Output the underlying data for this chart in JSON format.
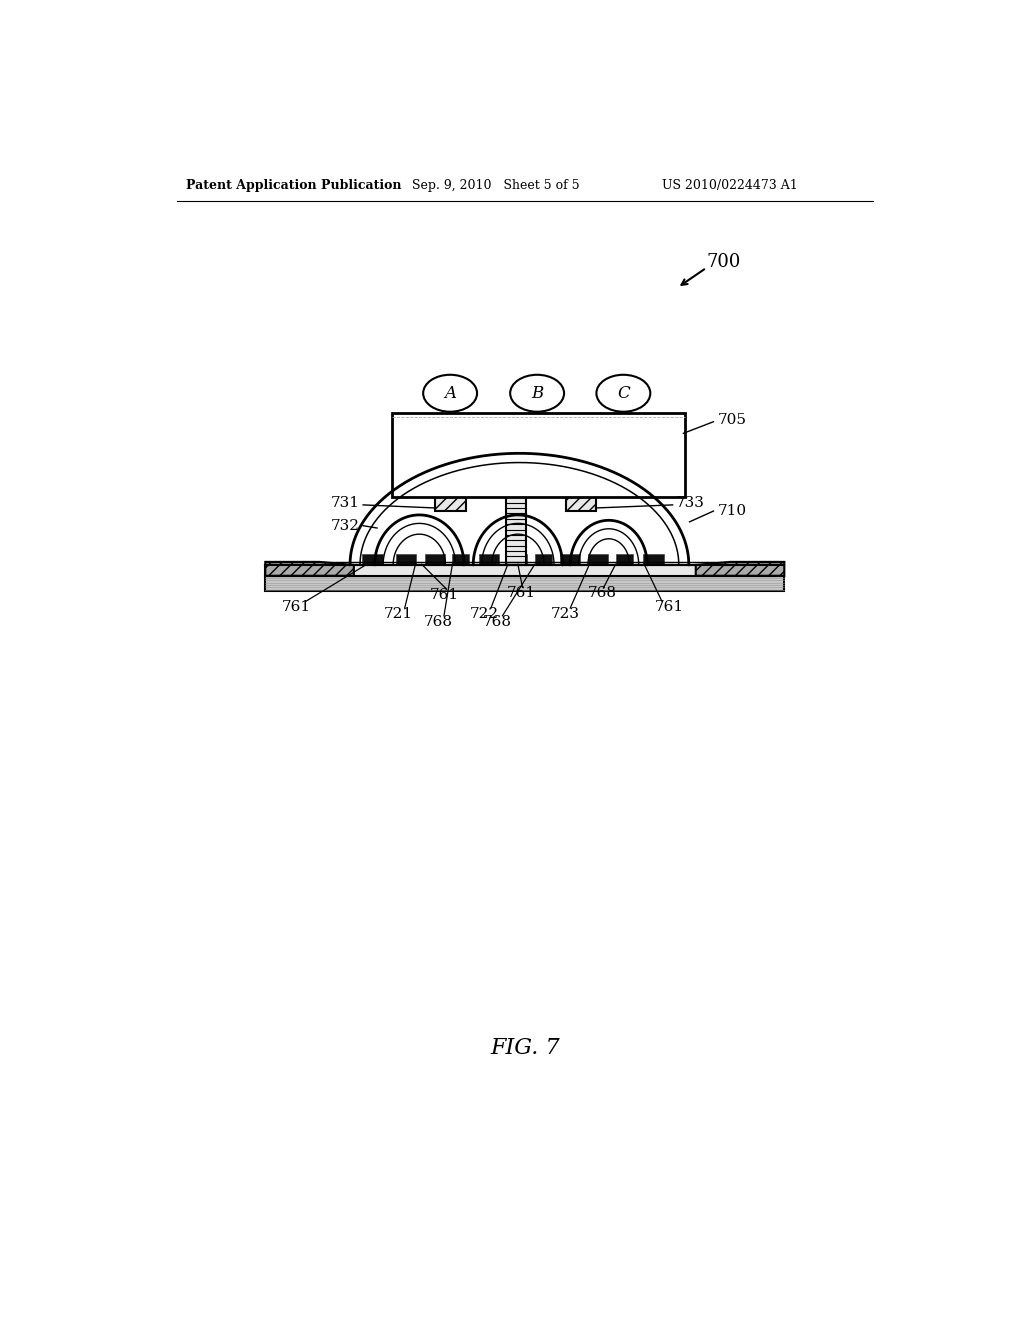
{
  "bg_color": "#ffffff",
  "header_left": "Patent Application Publication",
  "header_mid": "Sep. 9, 2010   Sheet 5 of 5",
  "header_right": "US 2010/0224473 A1",
  "fig_label": "FIG. 7",
  "circle_labels": [
    "A",
    "B",
    "C"
  ],
  "line_color": "#000000",
  "dark_fill": "#111111",
  "gray_fill": "#c8c8c8",
  "light_gray": "#e8e8e8",
  "hatch_gray": "#aaaaaa"
}
